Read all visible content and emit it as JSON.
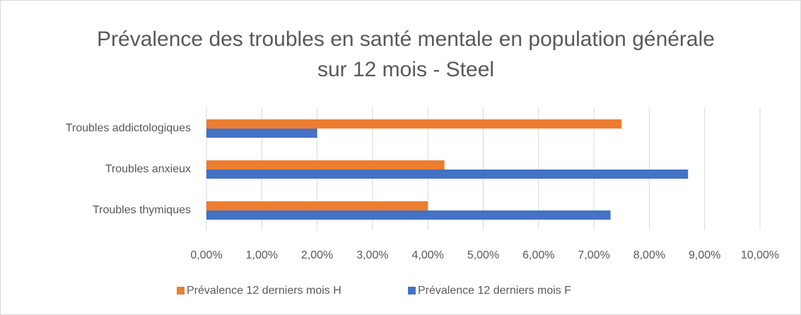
{
  "chart_data": {
    "type": "hbar",
    "title": "Prévalence des troubles en santé mentale en population générale sur 12 mois - Steel",
    "categories": [
      "Troubles addictologiques",
      "Troubles anxieux",
      "Troubles thymiques"
    ],
    "series": [
      {
        "name": "Prévalence 12 derniers mois H",
        "color": "#ed7d31",
        "values": [
          7.5,
          4.3,
          4.0
        ]
      },
      {
        "name": "Prévalence 12 derniers mois F",
        "color": "#4472c4",
        "values": [
          2.0,
          8.7,
          7.3
        ]
      }
    ],
    "xlim": [
      0,
      10
    ],
    "xticks": [
      {
        "value": 0,
        "label": "0,00%"
      },
      {
        "value": 1,
        "label": "1,00%"
      },
      {
        "value": 2,
        "label": "2,00%"
      },
      {
        "value": 3,
        "label": "3,00%"
      },
      {
        "value": 4,
        "label": "4,00%"
      },
      {
        "value": 5,
        "label": "5,00%"
      },
      {
        "value": 6,
        "label": "6,00%"
      },
      {
        "value": 7,
        "label": "7,00%"
      },
      {
        "value": 8,
        "label": "8,00%"
      },
      {
        "value": 9,
        "label": "9,00%"
      },
      {
        "value": 10,
        "label": "10,00%"
      }
    ],
    "grid": true,
    "legend": "bottom"
  }
}
